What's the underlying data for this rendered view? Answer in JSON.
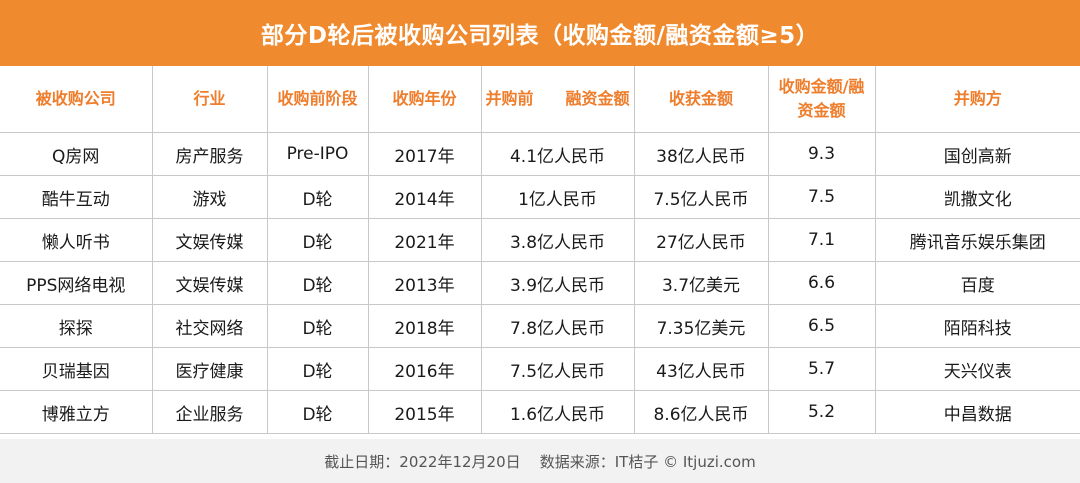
{
  "title": "部分D轮后被收购公司列表（收购金额/融资金额≥5）",
  "columns": [
    "被收购公司",
    "行业",
    "收购前阶段",
    "收购年份",
    "并购前　　融资金额",
    "收获金额",
    "收购金额/融资金额",
    "并购方"
  ],
  "rows": [
    [
      "Q房网",
      "房产服务",
      "Pre-IPO",
      "2017年",
      "4.1亿人民币",
      "38亿人民币",
      "9.3",
      "国创高新"
    ],
    [
      "酷牛互动",
      "游戏",
      "D轮",
      "2014年",
      "1亿人民币",
      "7.5亿人民币",
      "7.5",
      "凯撒文化"
    ],
    [
      "懒人听书",
      "文娱传媒",
      "D轮",
      "2021年",
      "3.8亿人民币",
      "27亿人民币",
      "7.1",
      "腾讯音乐娱乐集团"
    ],
    [
      "PPS网络电视",
      "文娱传媒",
      "D轮",
      "2013年",
      "3.9亿人民币",
      "3.7亿美元",
      "6.6",
      "百度"
    ],
    [
      "探探",
      "社交网络",
      "D轮",
      "2018年",
      "7.8亿人民币",
      "7.35亿美元",
      "6.5",
      "陌陌科技"
    ],
    [
      "贝瑞基因",
      "医疗健康",
      "D轮",
      "2016年",
      "7.5亿人民币",
      "43亿人民币",
      "5.7",
      "天兴仪表"
    ],
    [
      "博雅立方",
      "企业服务",
      "D轮",
      "2015年",
      "1.6亿人民币",
      "8.6亿人民币",
      "5.2",
      "中昌数据"
    ]
  ],
  "footer": {
    "date": "截止日期：2022年12月20日",
    "source": "数据来源：IT桔子 © Itjuzi.com"
  },
  "colors": {
    "accent": "#f08a2e",
    "header_text": "#ee7d2c"
  }
}
